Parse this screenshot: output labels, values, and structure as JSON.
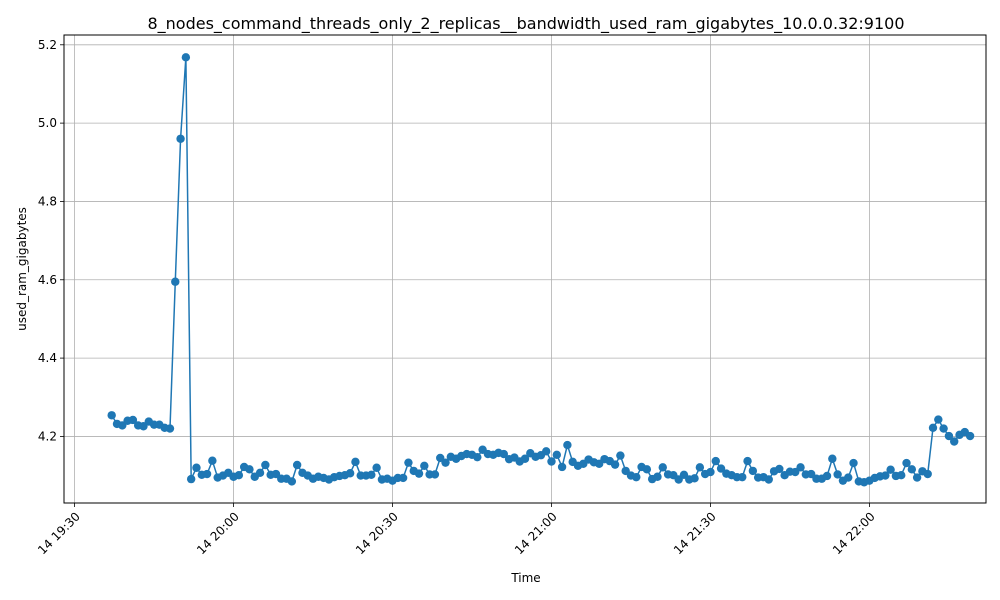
{
  "chart_data": {
    "type": "line",
    "title": "8_nodes_command_threads_only_2_replicas__bandwidth_used_ram_gigabytes_10.0.0.32:9100",
    "xlabel": "Time",
    "ylabel": "used_ram_gigabytes",
    "x_axis": {
      "unit": "minutes",
      "range": [
        "14 19:28",
        "14 22:22"
      ],
      "ticks": [
        {
          "value": "19:30",
          "label": "14 19:30"
        },
        {
          "value": "20:00",
          "label": "14 20:00"
        },
        {
          "value": "20:30",
          "label": "14 20:30"
        },
        {
          "value": "21:00",
          "label": "14 21:00"
        },
        {
          "value": "21:30",
          "label": "14 21:30"
        },
        {
          "value": "22:00",
          "label": "14 22:00"
        }
      ]
    },
    "y_axis": {
      "range": [
        4.03,
        5.225
      ],
      "ticks": [
        {
          "value": 4.2,
          "label": "4.2"
        },
        {
          "value": 4.4,
          "label": "4.4"
        },
        {
          "value": 4.6,
          "label": "4.6"
        },
        {
          "value": 4.8,
          "label": "4.8"
        },
        {
          "value": 5.0,
          "label": "5.0"
        },
        {
          "value": 5.2,
          "label": "5.2"
        }
      ]
    },
    "grid": true,
    "series_color": "#1f77b4",
    "series": [
      {
        "points": [
          [
            "19:37",
            4.254
          ],
          [
            "19:38",
            4.232
          ],
          [
            "19:39",
            4.228
          ],
          [
            "19:40",
            4.24
          ],
          [
            "19:41",
            4.242
          ],
          [
            "19:42",
            4.228
          ],
          [
            "19:43",
            4.226
          ],
          [
            "19:44",
            4.238
          ],
          [
            "19:45",
            4.23
          ],
          [
            "19:46",
            4.23
          ],
          [
            "19:47",
            4.222
          ],
          [
            "19:48",
            4.22
          ],
          [
            "19:49",
            4.595
          ],
          [
            "19:50",
            4.96
          ],
          [
            "19:51",
            5.168
          ],
          [
            "19:52",
            4.091
          ],
          [
            "19:53",
            4.12
          ],
          [
            "19:54",
            4.102
          ],
          [
            "19:55",
            4.104
          ],
          [
            "19:56",
            4.138
          ],
          [
            "19:57",
            4.095
          ],
          [
            "19:58",
            4.1
          ],
          [
            "19:59",
            4.107
          ],
          [
            "20:00",
            4.097
          ],
          [
            "20:01",
            4.101
          ],
          [
            "20:02",
            4.122
          ],
          [
            "20:03",
            4.116
          ],
          [
            "20:04",
            4.097
          ],
          [
            "20:05",
            4.107
          ],
          [
            "20:06",
            4.127
          ],
          [
            "20:07",
            4.102
          ],
          [
            "20:08",
            4.104
          ],
          [
            "20:09",
            4.092
          ],
          [
            "20:10",
            4.092
          ],
          [
            "20:11",
            4.085
          ],
          [
            "20:12",
            4.127
          ],
          [
            "20:13",
            4.107
          ],
          [
            "20:14",
            4.1
          ],
          [
            "20:15",
            4.092
          ],
          [
            "20:16",
            4.097
          ],
          [
            "20:17",
            4.094
          ],
          [
            "20:18",
            4.09
          ],
          [
            "20:19",
            4.096
          ],
          [
            "20:20",
            4.099
          ],
          [
            "20:21",
            4.101
          ],
          [
            "20:22",
            4.106
          ],
          [
            "20:23",
            4.135
          ],
          [
            "20:24",
            4.1
          ],
          [
            "20:25",
            4.1
          ],
          [
            "20:26",
            4.102
          ],
          [
            "20:27",
            4.12
          ],
          [
            "20:28",
            4.09
          ],
          [
            "20:29",
            4.092
          ],
          [
            "20:30",
            4.087
          ],
          [
            "20:31",
            4.094
          ],
          [
            "20:32",
            4.094
          ],
          [
            "20:33",
            4.133
          ],
          [
            "20:34",
            4.112
          ],
          [
            "20:35",
            4.105
          ],
          [
            "20:36",
            4.125
          ],
          [
            "20:37",
            4.103
          ],
          [
            "20:38",
            4.103
          ],
          [
            "20:39",
            4.145
          ],
          [
            "20:40",
            4.133
          ],
          [
            "20:41",
            4.148
          ],
          [
            "20:42",
            4.143
          ],
          [
            "20:43",
            4.15
          ],
          [
            "20:44",
            4.155
          ],
          [
            "20:45",
            4.153
          ],
          [
            "20:46",
            4.147
          ],
          [
            "20:47",
            4.166
          ],
          [
            "20:48",
            4.155
          ],
          [
            "20:49",
            4.153
          ],
          [
            "20:50",
            4.158
          ],
          [
            "20:51",
            4.155
          ],
          [
            "20:52",
            4.142
          ],
          [
            "20:53",
            4.146
          ],
          [
            "20:54",
            4.136
          ],
          [
            "20:55",
            4.143
          ],
          [
            "20:56",
            4.157
          ],
          [
            "20:57",
            4.148
          ],
          [
            "20:58",
            4.152
          ],
          [
            "20:59",
            4.162
          ],
          [
            "21:00",
            4.136
          ],
          [
            "21:01",
            4.153
          ],
          [
            "21:02",
            4.122
          ],
          [
            "21:03",
            4.178
          ],
          [
            "21:04",
            4.135
          ],
          [
            "21:05",
            4.125
          ],
          [
            "21:06",
            4.13
          ],
          [
            "21:07",
            4.141
          ],
          [
            "21:08",
            4.134
          ],
          [
            "21:09",
            4.13
          ],
          [
            "21:10",
            4.142
          ],
          [
            "21:11",
            4.137
          ],
          [
            "21:12",
            4.128
          ],
          [
            "21:13",
            4.151
          ],
          [
            "21:14",
            4.112
          ],
          [
            "21:15",
            4.1
          ],
          [
            "21:16",
            4.096
          ],
          [
            "21:17",
            4.122
          ],
          [
            "21:18",
            4.116
          ],
          [
            "21:19",
            4.091
          ],
          [
            "21:20",
            4.097
          ],
          [
            "21:21",
            4.121
          ],
          [
            "21:22",
            4.103
          ],
          [
            "21:23",
            4.101
          ],
          [
            "21:24",
            4.09
          ],
          [
            "21:25",
            4.102
          ],
          [
            "21:26",
            4.09
          ],
          [
            "21:27",
            4.093
          ],
          [
            "21:28",
            4.121
          ],
          [
            "21:29",
            4.104
          ],
          [
            "21:30",
            4.109
          ],
          [
            "21:31",
            4.137
          ],
          [
            "21:32",
            4.118
          ],
          [
            "21:33",
            4.105
          ],
          [
            "21:34",
            4.101
          ],
          [
            "21:35",
            4.096
          ],
          [
            "21:36",
            4.096
          ],
          [
            "21:37",
            4.137
          ],
          [
            "21:38",
            4.112
          ],
          [
            "21:39",
            4.095
          ],
          [
            "21:40",
            4.096
          ],
          [
            "21:41",
            4.09
          ],
          [
            "21:42",
            4.111
          ],
          [
            "21:43",
            4.117
          ],
          [
            "21:44",
            4.101
          ],
          [
            "21:45",
            4.11
          ],
          [
            "21:46",
            4.109
          ],
          [
            "21:47",
            4.121
          ],
          [
            "21:48",
            4.103
          ],
          [
            "21:49",
            4.104
          ],
          [
            "21:50",
            4.092
          ],
          [
            "21:51",
            4.092
          ],
          [
            "21:52",
            4.099
          ],
          [
            "21:53",
            4.143
          ],
          [
            "21:54",
            4.103
          ],
          [
            "21:55",
            4.087
          ],
          [
            "21:56",
            4.095
          ],
          [
            "21:57",
            4.132
          ],
          [
            "21:58",
            4.085
          ],
          [
            "21:59",
            4.083
          ],
          [
            "22:00",
            4.087
          ],
          [
            "22:01",
            4.094
          ],
          [
            "22:02",
            4.098
          ],
          [
            "22:03",
            4.1
          ],
          [
            "22:04",
            4.115
          ],
          [
            "22:05",
            4.099
          ],
          [
            "22:06",
            4.101
          ],
          [
            "22:07",
            4.132
          ],
          [
            "22:08",
            4.116
          ],
          [
            "22:09",
            4.095
          ],
          [
            "22:10",
            4.111
          ],
          [
            "22:11",
            4.104
          ],
          [
            "22:12",
            4.222
          ],
          [
            "22:13",
            4.243
          ],
          [
            "22:14",
            4.22
          ],
          [
            "22:15",
            4.201
          ],
          [
            "22:16",
            4.187
          ],
          [
            "22:17",
            4.204
          ],
          [
            "22:18",
            4.211
          ],
          [
            "22:19",
            4.201
          ]
        ]
      }
    ]
  }
}
